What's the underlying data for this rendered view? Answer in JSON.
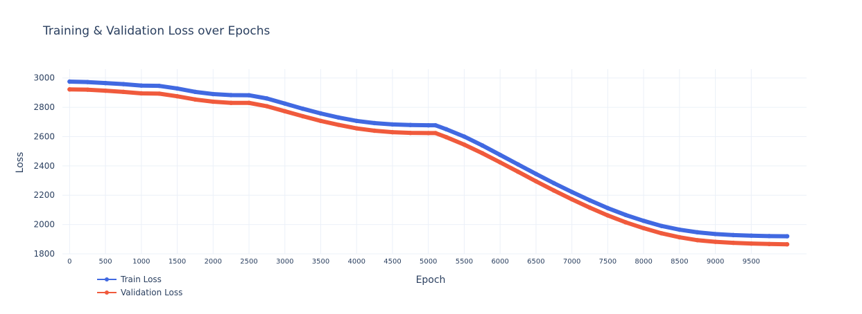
{
  "chart_data": {
    "type": "line",
    "title": "Training & Validation Loss over Epochs",
    "xlabel": "Epoch",
    "ylabel": "Loss",
    "xlim": [
      -100,
      10270
    ],
    "ylim": [
      1800,
      3060
    ],
    "x_ticks": [
      0,
      500,
      1000,
      1500,
      2000,
      2500,
      3000,
      3500,
      4000,
      4500,
      5000,
      5500,
      6000,
      6500,
      7000,
      7500,
      8000,
      8500,
      9000,
      9500
    ],
    "y_ticks": [
      1800,
      2000,
      2200,
      2400,
      2600,
      2800,
      3000
    ],
    "grid": true,
    "legend_position": "bottom-left",
    "x": [
      0,
      250,
      500,
      750,
      1000,
      1250,
      1500,
      1750,
      2000,
      2250,
      2500,
      2750,
      3000,
      3250,
      3500,
      3750,
      4000,
      4250,
      4500,
      4750,
      5000,
      5100,
      5250,
      5500,
      5750,
      6000,
      6250,
      6500,
      6750,
      7000,
      7250,
      7500,
      7750,
      8000,
      8250,
      8500,
      8750,
      9000,
      9250,
      9500,
      9750,
      10000
    ],
    "series": [
      {
        "name": "Train Loss",
        "color": "#4169E1",
        "values": [
          2975,
          2972,
          2965,
          2958,
          2948,
          2946,
          2928,
          2905,
          2890,
          2883,
          2882,
          2860,
          2825,
          2790,
          2758,
          2730,
          2707,
          2692,
          2683,
          2679,
          2677,
          2677,
          2650,
          2600,
          2540,
          2475,
          2410,
          2345,
          2282,
          2222,
          2165,
          2112,
          2065,
          2025,
          1990,
          1965,
          1947,
          1935,
          1928,
          1924,
          1921,
          1920
        ]
      },
      {
        "name": "Validation Loss",
        "color": "#F05A3C",
        "values": [
          2922,
          2920,
          2913,
          2905,
          2895,
          2893,
          2875,
          2853,
          2838,
          2830,
          2830,
          2807,
          2773,
          2739,
          2707,
          2680,
          2656,
          2640,
          2630,
          2625,
          2624,
          2624,
          2596,
          2545,
          2487,
          2424,
          2360,
          2295,
          2232,
          2172,
          2115,
          2062,
          2015,
          1975,
          1940,
          1913,
          1893,
          1882,
          1875,
          1870,
          1867,
          1865
        ]
      }
    ]
  }
}
